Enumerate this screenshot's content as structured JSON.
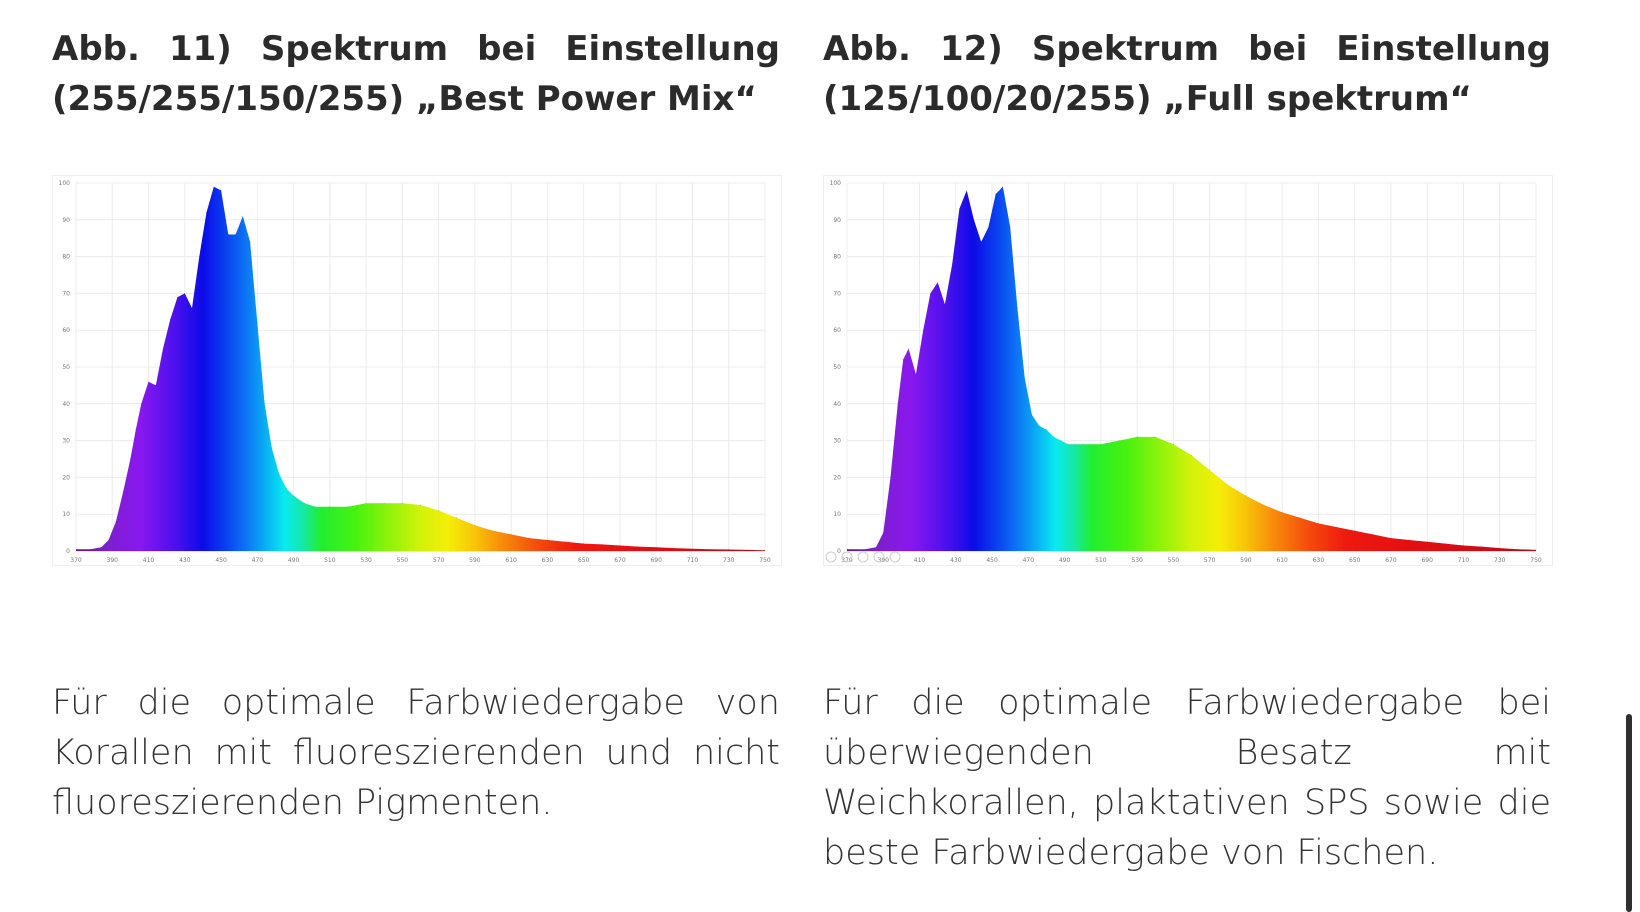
{
  "columns": [
    {
      "heading": "Abb. 11) Spektrum bei Einstellung (255/255/150/255) „Best Power Mix“",
      "caption": "Für die optimale Farbwiedergabe von Korallen mit fluoreszierenden und nicht fluoreszierenden Pigmenten."
    },
    {
      "heading": "Abb. 12) Spektrum bei Einstellung (125/100/20/255) „Full spektrum“",
      "caption": "Für die optimale Farbwiedergabe bei überwiegenden Besatz mit Weichkorallen, plaktativen SPS sowie die beste Farbwiedergabe von Fischen."
    }
  ],
  "chart_data": [
    {
      "type": "area",
      "title": "",
      "xlabel": "",
      "ylabel": "",
      "xlim": [
        370,
        750
      ],
      "ylim": [
        0,
        100
      ],
      "x_ticks": [
        "370",
        "390",
        "410",
        "430",
        "450",
        "470",
        "490",
        "510",
        "530",
        "550",
        "570",
        "590",
        "610",
        "630",
        "650",
        "670",
        "690",
        "710",
        "730",
        "750"
      ],
      "y_ticks": [
        "0",
        "10",
        "20",
        "30",
        "40",
        "50",
        "60",
        "70",
        "80",
        "90",
        "100"
      ],
      "grid": true,
      "fill": "visible-spectrum gradient",
      "series": [
        {
          "x": [
            370,
            378,
            384,
            388,
            392,
            396,
            400,
            403,
            406,
            410,
            414,
            418,
            422,
            426,
            430,
            434,
            438,
            442,
            446,
            450,
            454,
            458,
            462,
            466,
            470,
            474,
            478,
            482,
            486,
            490,
            496,
            502,
            510,
            520,
            530,
            540,
            550,
            560,
            570,
            580,
            590,
            600,
            610,
            620,
            630,
            640,
            650,
            660,
            670,
            680,
            690,
            700,
            710,
            720,
            730,
            740,
            750
          ],
          "y": [
            0.5,
            0.5,
            1,
            3,
            8,
            16,
            25,
            33,
            40,
            46,
            45,
            55,
            63,
            69,
            70,
            66,
            80,
            92,
            99,
            98,
            86,
            86,
            91,
            84,
            62,
            40,
            28,
            21,
            17,
            15,
            13,
            12,
            12,
            12,
            13,
            13,
            13,
            12.5,
            11,
            9,
            7,
            5.5,
            4.5,
            3.5,
            3,
            2.5,
            2,
            1.8,
            1.5,
            1.2,
            1,
            0.8,
            0.6,
            0.5,
            0.4,
            0.3,
            0.2
          ]
        }
      ]
    },
    {
      "type": "area",
      "title": "",
      "xlabel": "",
      "ylabel": "",
      "xlim": [
        370,
        750
      ],
      "ylim": [
        0,
        100
      ],
      "x_ticks": [
        "370",
        "390",
        "410",
        "430",
        "450",
        "470",
        "490",
        "510",
        "530",
        "550",
        "570",
        "590",
        "610",
        "630",
        "650",
        "670",
        "690",
        "710",
        "730",
        "750"
      ],
      "y_ticks": [
        "0",
        "10",
        "20",
        "30",
        "40",
        "50",
        "60",
        "70",
        "80",
        "90",
        "100"
      ],
      "grid": true,
      "fill": "visible-spectrum gradient",
      "toolbar_icons": [
        "reset-icon",
        "pan-icon",
        "zoom-icon",
        "zoom-plus-icon",
        "zoom-minus-icon"
      ],
      "series": [
        {
          "x": [
            370,
            380,
            386,
            390,
            394,
            398,
            401,
            404,
            408,
            412,
            416,
            420,
            424,
            428,
            432,
            436,
            440,
            444,
            448,
            452,
            456,
            460,
            464,
            468,
            472,
            476,
            480,
            484,
            488,
            492,
            496,
            500,
            510,
            520,
            530,
            540,
            550,
            560,
            570,
            580,
            590,
            600,
            610,
            620,
            630,
            640,
            650,
            660,
            670,
            680,
            690,
            700,
            710,
            720,
            730,
            740,
            750
          ],
          "y": [
            0.5,
            0.5,
            1,
            5,
            20,
            40,
            52,
            55,
            48,
            60,
            70,
            73,
            67,
            78,
            93,
            98,
            90,
            84,
            88,
            97,
            99,
            88,
            66,
            47,
            37,
            34,
            33,
            31,
            30,
            29,
            29,
            29,
            29,
            30,
            31,
            31,
            29,
            26,
            22,
            18,
            15,
            12.5,
            10.5,
            9,
            7.5,
            6.5,
            5.5,
            4.5,
            3.5,
            3,
            2.5,
            2,
            1.5,
            1.2,
            0.8,
            0.5,
            0.3
          ]
        }
      ]
    }
  ]
}
